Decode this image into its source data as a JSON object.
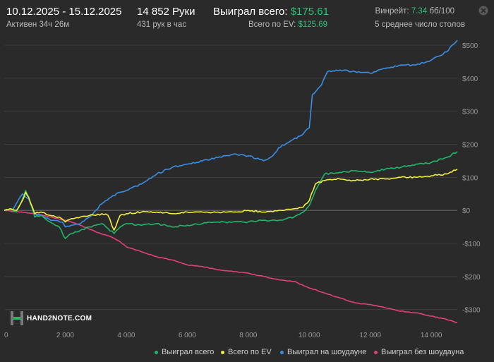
{
  "header": {
    "dates": "10.12.2025 - 15.12.2025",
    "active": "Активен 34ч 26м",
    "hands": "14 852 Руки",
    "hands_per_hour": "431 рук в час",
    "won_label": "Выиграл всего:",
    "won_value": "$175.61",
    "ev_label": "Всего по EV:",
    "ev_value": "$125.69",
    "winrate_label": "Винрейт:",
    "winrate_value": "7.34",
    "winrate_unit": "бб/100",
    "tables": "5 среднее число столов"
  },
  "logo": {
    "text": "HAND2NOTE.COM"
  },
  "icons": {
    "close": "close-icon",
    "logo": "hand2note-logo-icon"
  },
  "colors": {
    "background": "#2a2a2a",
    "won": "#1fb86b",
    "ev": "#f2ee3d",
    "showdown": "#3a8fe3",
    "non_showdown": "#e23f7b"
  },
  "chart_data": {
    "type": "line",
    "title": "",
    "xlabel": "",
    "ylabel": "",
    "xlim": [
      0,
      14852
    ],
    "ylim": [
      -350,
      530
    ],
    "x_ticks": [
      0,
      2000,
      4000,
      6000,
      8000,
      10000,
      12000,
      14000
    ],
    "x_tick_labels": [
      "0",
      "2 000",
      "4 000",
      "6 000",
      "8 000",
      "10 000",
      "12 000",
      "14 000"
    ],
    "y_ticks": [
      500,
      400,
      300,
      200,
      100,
      0,
      -100,
      -200,
      -300
    ],
    "y_tick_labels": [
      "$500",
      "$400",
      "$300",
      "$200",
      "$100",
      "$0",
      "-$100",
      "-$200",
      "-$300"
    ],
    "grid": true,
    "legend_position": "bottom-right",
    "series": [
      {
        "name": "Выиграл всего",
        "color": "#1fb86b",
        "x": [
          0,
          200,
          400,
          600,
          700,
          800,
          1000,
          1200,
          1500,
          1800,
          2000,
          2200,
          2500,
          2800,
          3000,
          3200,
          3400,
          3600,
          3800,
          4000,
          4500,
          5000,
          5500,
          6000,
          6500,
          7000,
          7500,
          8000,
          8500,
          9000,
          9500,
          9800,
          10000,
          10200,
          10500,
          11000,
          11500,
          12000,
          12500,
          13000,
          13500,
          14000,
          14500,
          14852
        ],
        "y": [
          0,
          5,
          -5,
          35,
          60,
          40,
          -20,
          -15,
          -35,
          -50,
          -85,
          -70,
          -60,
          -50,
          -45,
          -40,
          -55,
          -70,
          -50,
          -40,
          -45,
          -40,
          -50,
          -45,
          -40,
          -35,
          -35,
          -35,
          -30,
          -30,
          -20,
          -5,
          15,
          60,
          110,
          115,
          120,
          115,
          125,
          130,
          140,
          145,
          160,
          178
        ]
      },
      {
        "name": "Всего по EV",
        "color": "#f2ee3d",
        "x": [
          0,
          200,
          400,
          600,
          700,
          800,
          1000,
          1200,
          1500,
          1800,
          2000,
          2200,
          2500,
          2800,
          3000,
          3200,
          3400,
          3600,
          3800,
          4000,
          4500,
          5000,
          5500,
          6000,
          6500,
          7000,
          7500,
          8000,
          8500,
          9000,
          9500,
          9800,
          10000,
          10200,
          10500,
          11000,
          11500,
          12000,
          12500,
          13000,
          13500,
          14000,
          14500,
          14852
        ],
        "y": [
          0,
          5,
          0,
          30,
          55,
          40,
          -10,
          -5,
          -15,
          -20,
          -35,
          -25,
          -20,
          -15,
          -15,
          -10,
          -15,
          -60,
          -15,
          -10,
          -5,
          -5,
          -10,
          -5,
          -5,
          -5,
          -5,
          0,
          -5,
          0,
          5,
          10,
          30,
          80,
          90,
          95,
          90,
          95,
          95,
          100,
          100,
          105,
          110,
          125
        ]
      },
      {
        "name": "Выиграл на шоудауне",
        "color": "#3a8fe3",
        "x": [
          0,
          300,
          600,
          800,
          1000,
          1300,
          1600,
          1900,
          2000,
          2200,
          2500,
          2800,
          3000,
          3200,
          3500,
          3800,
          4000,
          4500,
          5000,
          5500,
          6000,
          6500,
          7000,
          7500,
          8000,
          8500,
          8800,
          9000,
          9300,
          9700,
          10000,
          10100,
          10400,
          10600,
          11000,
          11500,
          12000,
          12500,
          13000,
          13500,
          14000,
          14500,
          14852
        ],
        "y": [
          0,
          5,
          50,
          35,
          -10,
          -20,
          -30,
          -35,
          -50,
          -45,
          -40,
          -20,
          0,
          20,
          40,
          55,
          60,
          80,
          110,
          130,
          140,
          150,
          160,
          170,
          165,
          150,
          165,
          190,
          205,
          225,
          250,
          350,
          380,
          420,
          425,
          420,
          415,
          430,
          440,
          440,
          455,
          480,
          515
        ]
      },
      {
        "name": "Выиграл без шоудауна",
        "color": "#e23f7b",
        "x": [
          0,
          500,
          1000,
          1500,
          2000,
          2500,
          3000,
          3500,
          3800,
          4000,
          4500,
          5000,
          5500,
          6000,
          6500,
          7000,
          7500,
          8000,
          8500,
          9000,
          9500,
          10000,
          10500,
          11000,
          11500,
          12000,
          12500,
          13000,
          13500,
          14000,
          14500,
          14852
        ],
        "y": [
          0,
          -5,
          -10,
          -20,
          -30,
          -45,
          -65,
          -80,
          -95,
          -110,
          -125,
          -140,
          -150,
          -165,
          -170,
          -180,
          -185,
          -190,
          -200,
          -210,
          -215,
          -235,
          -250,
          -265,
          -280,
          -285,
          -295,
          -305,
          -310,
          -320,
          -330,
          -340
        ]
      }
    ]
  }
}
